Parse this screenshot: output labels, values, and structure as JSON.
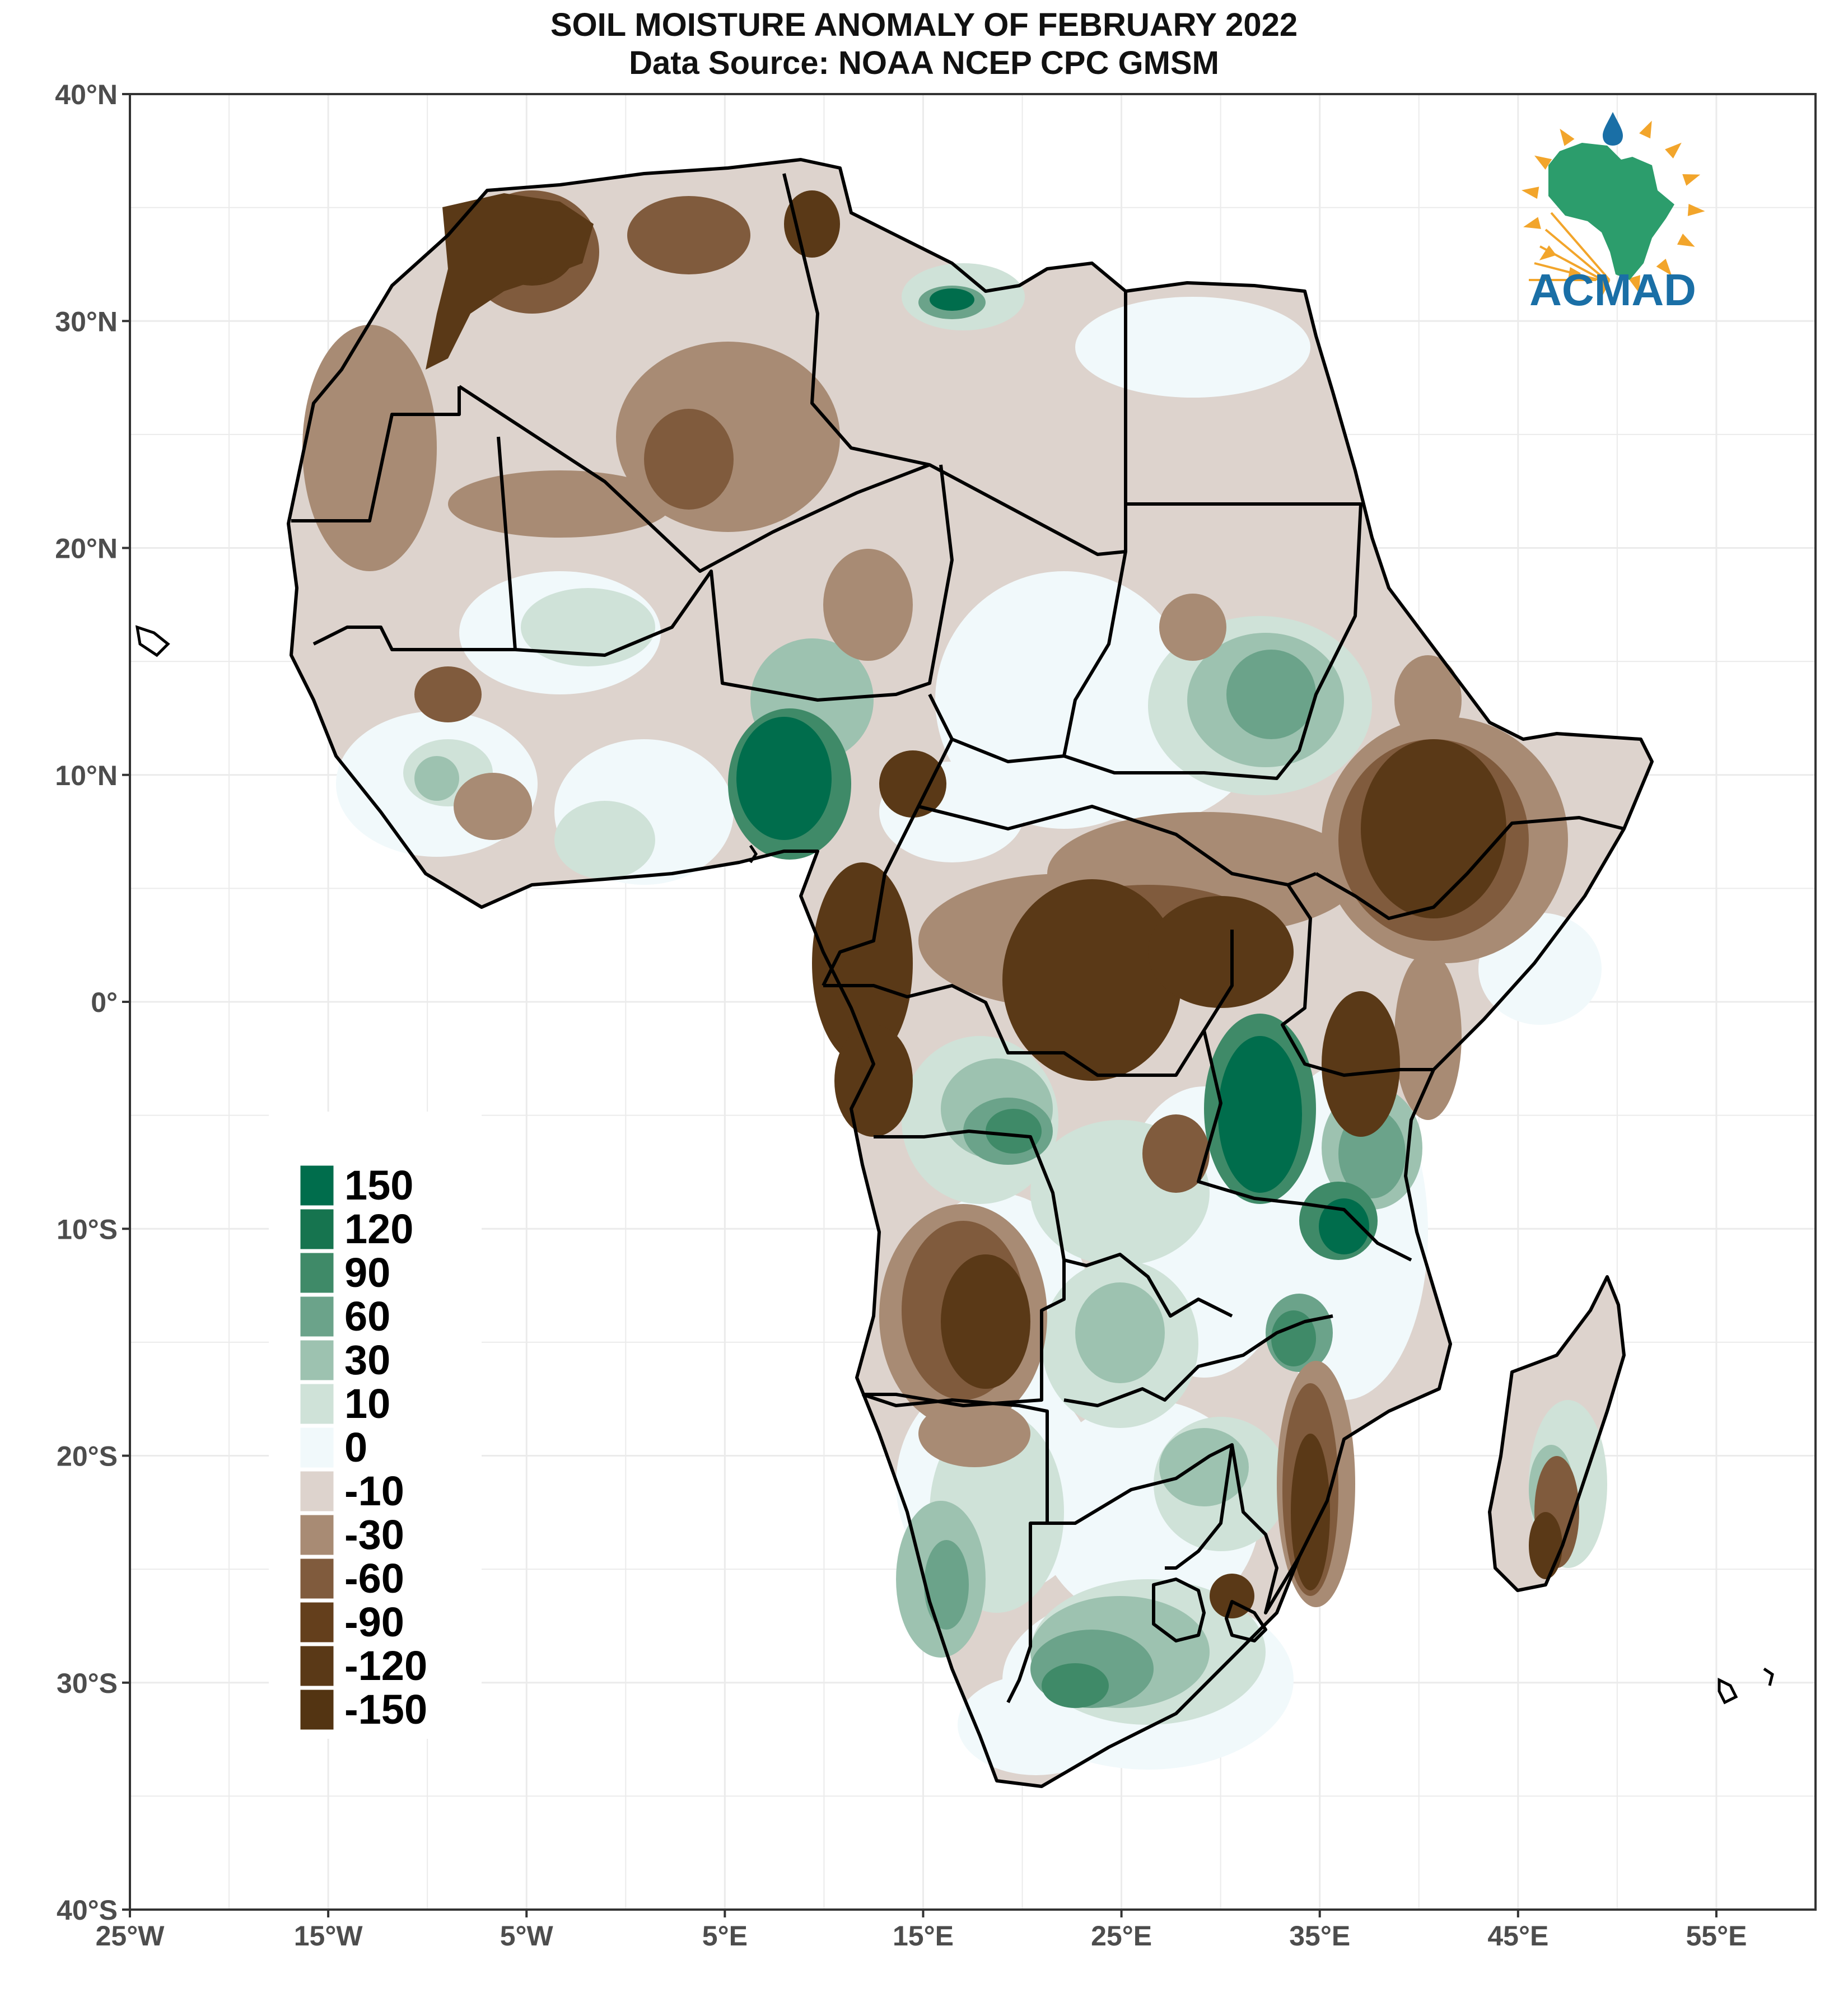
{
  "title": {
    "line1": "SOIL MOISTURE ANOMALY OF FEBRUARY 2022",
    "line2": "Data Source: NOAA NCEP CPC GMSM"
  },
  "axes": {
    "lat_labels": [
      "40°N",
      "30°N",
      "20°N",
      "10°N",
      "0°",
      "10°S",
      "20°S",
      "30°S",
      "40°S"
    ],
    "lon_labels": [
      "25°W",
      "15°W",
      "5°W",
      "5°E",
      "15°E",
      "25°E",
      "35°E",
      "45°E",
      "55°E"
    ],
    "lat_range": [
      -40,
      40
    ],
    "lon_range": [
      -25,
      60
    ]
  },
  "legend": {
    "items": [
      {
        "label": "150",
        "color": "#006d4c"
      },
      {
        "label": "120",
        "color": "#16744f"
      },
      {
        "label": "90",
        "color": "#3f8a68"
      },
      {
        "label": "60",
        "color": "#6ba38a"
      },
      {
        "label": "30",
        "color": "#9dc2b0"
      },
      {
        "label": "10",
        "color": "#cfe2d8"
      },
      {
        "label": "0",
        "color": "#f1f9fb"
      },
      {
        "label": "-10",
        "color": "#ddd3cd"
      },
      {
        "label": "-30",
        "color": "#a88b74"
      },
      {
        "label": "-60",
        "color": "#805b3d"
      },
      {
        "label": "-90",
        "color": "#643f1c"
      },
      {
        "label": "-120",
        "color": "#5a3917"
      },
      {
        "label": "-150",
        "color": "#533412"
      }
    ]
  },
  "logo": {
    "text": "ACMAD",
    "color": "#1a6fa6",
    "continent_color": "#2c9d6c",
    "sun_color": "#f2a52b",
    "drop_color": "#1a6fa6"
  },
  "colors": {
    "border": "#000000",
    "grid": "#ebebeb",
    "frame": "#333333"
  }
}
